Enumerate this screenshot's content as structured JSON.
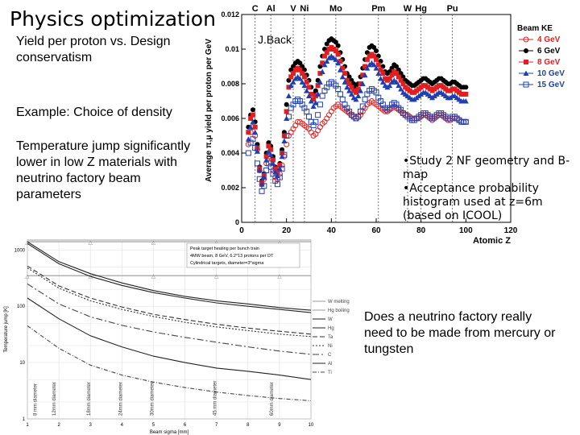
{
  "slide": {
    "title": "Physics optimization",
    "subtitle": "Yield per proton vs. Design conservatism",
    "example": "Example: Choice of density",
    "temperature_text": "Temperature jump significantly lower in low Z materials with neutrino factory beam parameters",
    "question": "Does a neutrino factory really need to be made from mercury or tungsten",
    "note_lines": [
      "•Study 2 NF geometry and B-map",
      "•Acceptance probability histogram used at z=6m (based on ICOOL)"
    ]
  },
  "chart_data": [
    {
      "type": "scatter",
      "title": "",
      "annotation": "J.Back",
      "xlabel": "Atomic Z",
      "ylabel": "Average π,μ yield per proton per GeV",
      "xlim": [
        0,
        120
      ],
      "ylim": [
        0,
        0.012
      ],
      "x_ticks": [
        "0",
        "20",
        "40",
        "60",
        "80",
        "100",
        "120"
      ],
      "y_ticks": [
        "0",
        "0.002",
        "0.004",
        "0.006",
        "0.008",
        "0.01",
        "0.012"
      ],
      "element_markers": [
        {
          "label": "C",
          "z": 6
        },
        {
          "label": "Al",
          "z": 13
        },
        {
          "label": "V",
          "z": 23
        },
        {
          "label": "Ni",
          "z": 28
        },
        {
          "label": "Mo",
          "z": 42
        },
        {
          "label": "Pm",
          "z": 61
        },
        {
          "label": "W",
          "z": 74
        },
        {
          "label": "Hg",
          "z": 80
        },
        {
          "label": "Pu",
          "z": 94
        }
      ],
      "legend_title": "Beam KE",
      "legend_position": "top-right",
      "x": [
        3,
        4,
        5,
        6,
        7,
        8,
        9,
        10,
        11,
        12,
        13,
        14,
        15,
        16,
        17,
        18,
        19,
        20,
        21,
        22,
        23,
        24,
        25,
        26,
        27,
        28,
        29,
        30,
        31,
        32,
        33,
        34,
        35,
        36,
        37,
        38,
        39,
        40,
        41,
        42,
        43,
        44,
        45,
        46,
        47,
        48,
        49,
        50,
        51,
        52,
        53,
        54,
        55,
        56,
        57,
        58,
        59,
        60,
        61,
        62,
        63,
        64,
        65,
        66,
        67,
        68,
        69,
        70,
        71,
        72,
        73,
        74,
        75,
        76,
        77,
        78,
        79,
        80,
        81,
        82,
        83,
        84,
        85,
        86,
        87,
        88,
        89,
        90,
        91,
        92,
        93,
        94,
        95,
        96,
        97,
        98,
        99,
        100
      ],
      "series": [
        {
          "name": "4 GeV",
          "color": "#e02020",
          "marker": "circle-open",
          "values": [
            0.0045,
            0.0052,
            0.0055,
            0.005,
            0.0042,
            0.003,
            0.0022,
            0.0025,
            0.0034,
            0.0038,
            0.0035,
            0.003,
            0.0026,
            0.0025,
            0.0028,
            0.0033,
            0.0038,
            0.0045,
            0.005,
            0.0052,
            0.0054,
            0.0056,
            0.0058,
            0.0058,
            0.0057,
            0.0056,
            0.0055,
            0.0054,
            0.0052,
            0.005,
            0.0051,
            0.0053,
            0.0055,
            0.0057,
            0.0058,
            0.006,
            0.0062,
            0.0064,
            0.0066,
            0.0067,
            0.0068,
            0.0067,
            0.0066,
            0.0065,
            0.0064,
            0.0063,
            0.0062,
            0.0061,
            0.006,
            0.0061,
            0.0062,
            0.0064,
            0.0066,
            0.0068,
            0.0069,
            0.007,
            0.0069,
            0.0068,
            0.0067,
            0.0066,
            0.0065,
            0.0064,
            0.0064,
            0.0065,
            0.0066,
            0.0067,
            0.0066,
            0.0065,
            0.0064,
            0.0063,
            0.0062,
            0.0062,
            0.0061,
            0.006,
            0.006,
            0.006,
            0.006,
            0.0061,
            0.0062,
            0.0062,
            0.0061,
            0.006,
            0.0059,
            0.006,
            0.0061,
            0.0062,
            0.0062,
            0.0061,
            0.006,
            0.0059,
            0.0059,
            0.006,
            0.006,
            0.006,
            0.0059,
            0.0058,
            0.0058,
            0.0058
          ]
        },
        {
          "name": "6 GeV",
          "color": "#000000",
          "marker": "circle",
          "values": [
            0.0055,
            0.0062,
            0.0065,
            0.0058,
            0.0045,
            0.0032,
            0.0024,
            0.0028,
            0.004,
            0.0046,
            0.0044,
            0.0038,
            0.0032,
            0.003,
            0.0034,
            0.0042,
            0.0052,
            0.0068,
            0.0082,
            0.0088,
            0.009,
            0.0092,
            0.0093,
            0.0092,
            0.009,
            0.0088,
            0.0085,
            0.0082,
            0.0078,
            0.0074,
            0.0076,
            0.0082,
            0.009,
            0.0096,
            0.01,
            0.0103,
            0.0105,
            0.0106,
            0.0105,
            0.0104,
            0.0102,
            0.0098,
            0.0094,
            0.009,
            0.0086,
            0.0084,
            0.0082,
            0.008,
            0.0078,
            0.008,
            0.0084,
            0.0089,
            0.0094,
            0.0098,
            0.0101,
            0.0102,
            0.0101,
            0.0099,
            0.0096,
            0.0093,
            0.009,
            0.0087,
            0.0086,
            0.0087,
            0.0089,
            0.0091,
            0.009,
            0.0088,
            0.0086,
            0.0084,
            0.0082,
            0.0081,
            0.008,
            0.0079,
            0.0079,
            0.008,
            0.0081,
            0.0082,
            0.0083,
            0.0083,
            0.0082,
            0.0081,
            0.008,
            0.0081,
            0.0082,
            0.0083,
            0.0083,
            0.0082,
            0.0081,
            0.008,
            0.008,
            0.0081,
            0.0081,
            0.008,
            0.0079,
            0.0078,
            0.0078,
            0.0078
          ]
        },
        {
          "name": "8 GeV",
          "color": "#e02020",
          "marker": "square",
          "values": [
            0.0052,
            0.006,
            0.0062,
            0.0055,
            0.0043,
            0.0031,
            0.0023,
            0.0027,
            0.0038,
            0.0044,
            0.0042,
            0.0036,
            0.0031,
            0.0029,
            0.0033,
            0.004,
            0.005,
            0.0064,
            0.0078,
            0.0084,
            0.0086,
            0.0088,
            0.0089,
            0.0088,
            0.0086,
            0.0084,
            0.0081,
            0.0078,
            0.0074,
            0.0071,
            0.0073,
            0.0079,
            0.0086,
            0.0092,
            0.0096,
            0.0098,
            0.01,
            0.0101,
            0.01,
            0.0099,
            0.0097,
            0.0093,
            0.0089,
            0.0086,
            0.0082,
            0.008,
            0.0078,
            0.0076,
            0.0075,
            0.0077,
            0.008,
            0.0085,
            0.009,
            0.0094,
            0.0096,
            0.0097,
            0.0096,
            0.0094,
            0.0091,
            0.0088,
            0.0086,
            0.0083,
            0.0082,
            0.0083,
            0.0085,
            0.0087,
            0.0086,
            0.0084,
            0.0082,
            0.008,
            0.0078,
            0.0077,
            0.0076,
            0.0075,
            0.0075,
            0.0076,
            0.0077,
            0.0078,
            0.0079,
            0.0079,
            0.0078,
            0.0077,
            0.0076,
            0.0077,
            0.0078,
            0.0079,
            0.0079,
            0.0078,
            0.0077,
            0.0076,
            0.0076,
            0.0077,
            0.0077,
            0.0076,
            0.0075,
            0.0074,
            0.0074,
            0.0074
          ]
        },
        {
          "name": "10 GeV",
          "color": "#1f3fb0",
          "marker": "triangle",
          "values": [
            0.0048,
            0.0055,
            0.0058,
            0.0052,
            0.0041,
            0.003,
            0.0022,
            0.0026,
            0.0036,
            0.0041,
            0.0039,
            0.0034,
            0.0029,
            0.0027,
            0.0031,
            0.0038,
            0.0047,
            0.006,
            0.0073,
            0.0079,
            0.0081,
            0.0083,
            0.0084,
            0.0083,
            0.0081,
            0.0079,
            0.0076,
            0.0073,
            0.007,
            0.0067,
            0.0069,
            0.0074,
            0.0081,
            0.0087,
            0.0091,
            0.0093,
            0.0095,
            0.0096,
            0.0095,
            0.0094,
            0.0092,
            0.0088,
            0.0084,
            0.0081,
            0.0078,
            0.0076,
            0.0074,
            0.0072,
            0.0071,
            0.0073,
            0.0076,
            0.008,
            0.0085,
            0.0089,
            0.0091,
            0.0092,
            0.0091,
            0.0089,
            0.0086,
            0.0083,
            0.0081,
            0.0079,
            0.0078,
            0.0079,
            0.0081,
            0.0082,
            0.0081,
            0.0079,
            0.0077,
            0.0075,
            0.0074,
            0.0073,
            0.0072,
            0.0071,
            0.0071,
            0.0072,
            0.0073,
            0.0074,
            0.0075,
            0.0075,
            0.0074,
            0.0073,
            0.0072,
            0.0073,
            0.0074,
            0.0075,
            0.0075,
            0.0074,
            0.0073,
            0.0072,
            0.0072,
            0.0073,
            0.0073,
            0.0072,
            0.0071,
            0.007,
            0.007,
            0.007
          ]
        },
        {
          "name": "15 GeV",
          "color": "#1f3fb0",
          "marker": "square-open",
          "values": [
            0.004,
            0.0046,
            0.0048,
            0.0043,
            0.0034,
            0.0025,
            0.0018,
            0.0021,
            0.003,
            0.0034,
            0.0032,
            0.0028,
            0.0024,
            0.0022,
            0.0026,
            0.0031,
            0.0039,
            0.005,
            0.0061,
            0.0066,
            0.0068,
            0.007,
            0.0071,
            0.007,
            0.0068,
            0.0066,
            0.0064,
            0.0061,
            0.0058,
            0.0056,
            0.0058,
            0.0062,
            0.0068,
            0.0073,
            0.0076,
            0.0078,
            0.008,
            0.0081,
            0.008,
            0.0079,
            0.0077,
            0.0074,
            0.0071,
            0.0068,
            0.0066,
            0.0064,
            0.0062,
            0.0061,
            0.006,
            0.0061,
            0.0064,
            0.0067,
            0.0071,
            0.0074,
            0.0076,
            0.0077,
            0.0076,
            0.0075,
            0.0072,
            0.007,
            0.0068,
            0.0066,
            0.0065,
            0.0066,
            0.0068,
            0.0069,
            0.0068,
            0.0066,
            0.0065,
            0.0063,
            0.0062,
            0.0061,
            0.006,
            0.0059,
            0.0059,
            0.006,
            0.0061,
            0.0062,
            0.0063,
            0.0063,
            0.0062,
            0.0061,
            0.006,
            0.0061,
            0.0062,
            0.0063,
            0.0063,
            0.0062,
            0.0061,
            0.006,
            0.006,
            0.0061,
            0.0061,
            0.006,
            0.0059,
            0.0058,
            0.0058,
            0.0058
          ]
        }
      ]
    },
    {
      "type": "line",
      "title": "",
      "xlabel": "Beam sigma [mm]",
      "ylabel": "Temperature jump [K]",
      "yscale": "log",
      "xlim": [
        1,
        10
      ],
      "ylim": [
        1,
        1500
      ],
      "x_ticks": [
        "1",
        "2",
        "3",
        "4",
        "5",
        "6",
        "7",
        "8",
        "9",
        "10"
      ],
      "y_ticks": [
        "1",
        "10",
        "100",
        "1000"
      ],
      "info_box": [
        "Peak target heating per bunch train",
        "4MW beam, 8 GeV, 6.2*13 protons per DT",
        "Cylindrical targets, diameter=3*sigma"
      ],
      "legend_position": "right",
      "vertical_annotations": [
        {
          "label": "8 mm diameter",
          "x": 1.3
        },
        {
          "label": "12mm diameter",
          "x": 1.9
        },
        {
          "label": "18mm diameter",
          "x": 3.0
        },
        {
          "label": "24mm diameter",
          "x": 4.0
        },
        {
          "label": "30mm diameter",
          "x": 5.0
        },
        {
          "label": "45 mm diameter",
          "x": 7.0
        },
        {
          "label": "60mm diameter",
          "x": 8.8
        }
      ],
      "x": [
        1,
        2,
        3,
        4,
        5,
        6,
        7,
        8,
        9,
        10
      ],
      "series": [
        {
          "name": "W melting",
          "color": "#999999",
          "dash": "",
          "values": [
            1400,
            1400,
            1400,
            1400,
            1400,
            1400,
            1400,
            1400,
            1400,
            1400
          ]
        },
        {
          "name": "Hg boiling",
          "color": "#999999",
          "dash": "",
          "values": [
            350,
            350,
            350,
            350,
            350,
            350,
            350,
            350,
            350,
            350
          ]
        },
        {
          "name": "W",
          "color": "#222222",
          "dash": "",
          "values": [
            1400,
            620,
            380,
            260,
            190,
            150,
            125,
            110,
            95,
            85
          ]
        },
        {
          "name": "Hg",
          "color": "#222222",
          "dash": "",
          "values": [
            1300,
            570,
            340,
            235,
            175,
            140,
            115,
            100,
            88,
            77
          ]
        },
        {
          "name": "Ta",
          "color": "#333333",
          "dash": "6,3",
          "values": [
            520,
            230,
            140,
            97,
            72,
            58,
            48,
            41,
            36,
            32
          ]
        },
        {
          "name": "Ni",
          "color": "#333333",
          "dash": "2,2",
          "values": [
            480,
            210,
            125,
            88,
            66,
            52,
            43,
            37,
            32,
            29
          ]
        },
        {
          "name": "C",
          "color": "#444444",
          "dash": "8,3,2,3",
          "values": [
            250,
            110,
            65,
            46,
            35,
            28,
            23,
            19,
            16,
            14
          ]
        },
        {
          "name": "Al",
          "color": "#222222",
          "dash": "",
          "values": [
            140,
            60,
            30,
            19,
            13,
            10,
            8,
            7,
            6,
            5
          ]
        },
        {
          "name": "Ti",
          "color": "#444444",
          "dash": "5,2,1,2",
          "values": [
            45,
            18,
            9,
            6,
            4.5,
            3.6,
            3.0,
            2.6,
            2.3,
            2.1
          ]
        }
      ]
    }
  ]
}
